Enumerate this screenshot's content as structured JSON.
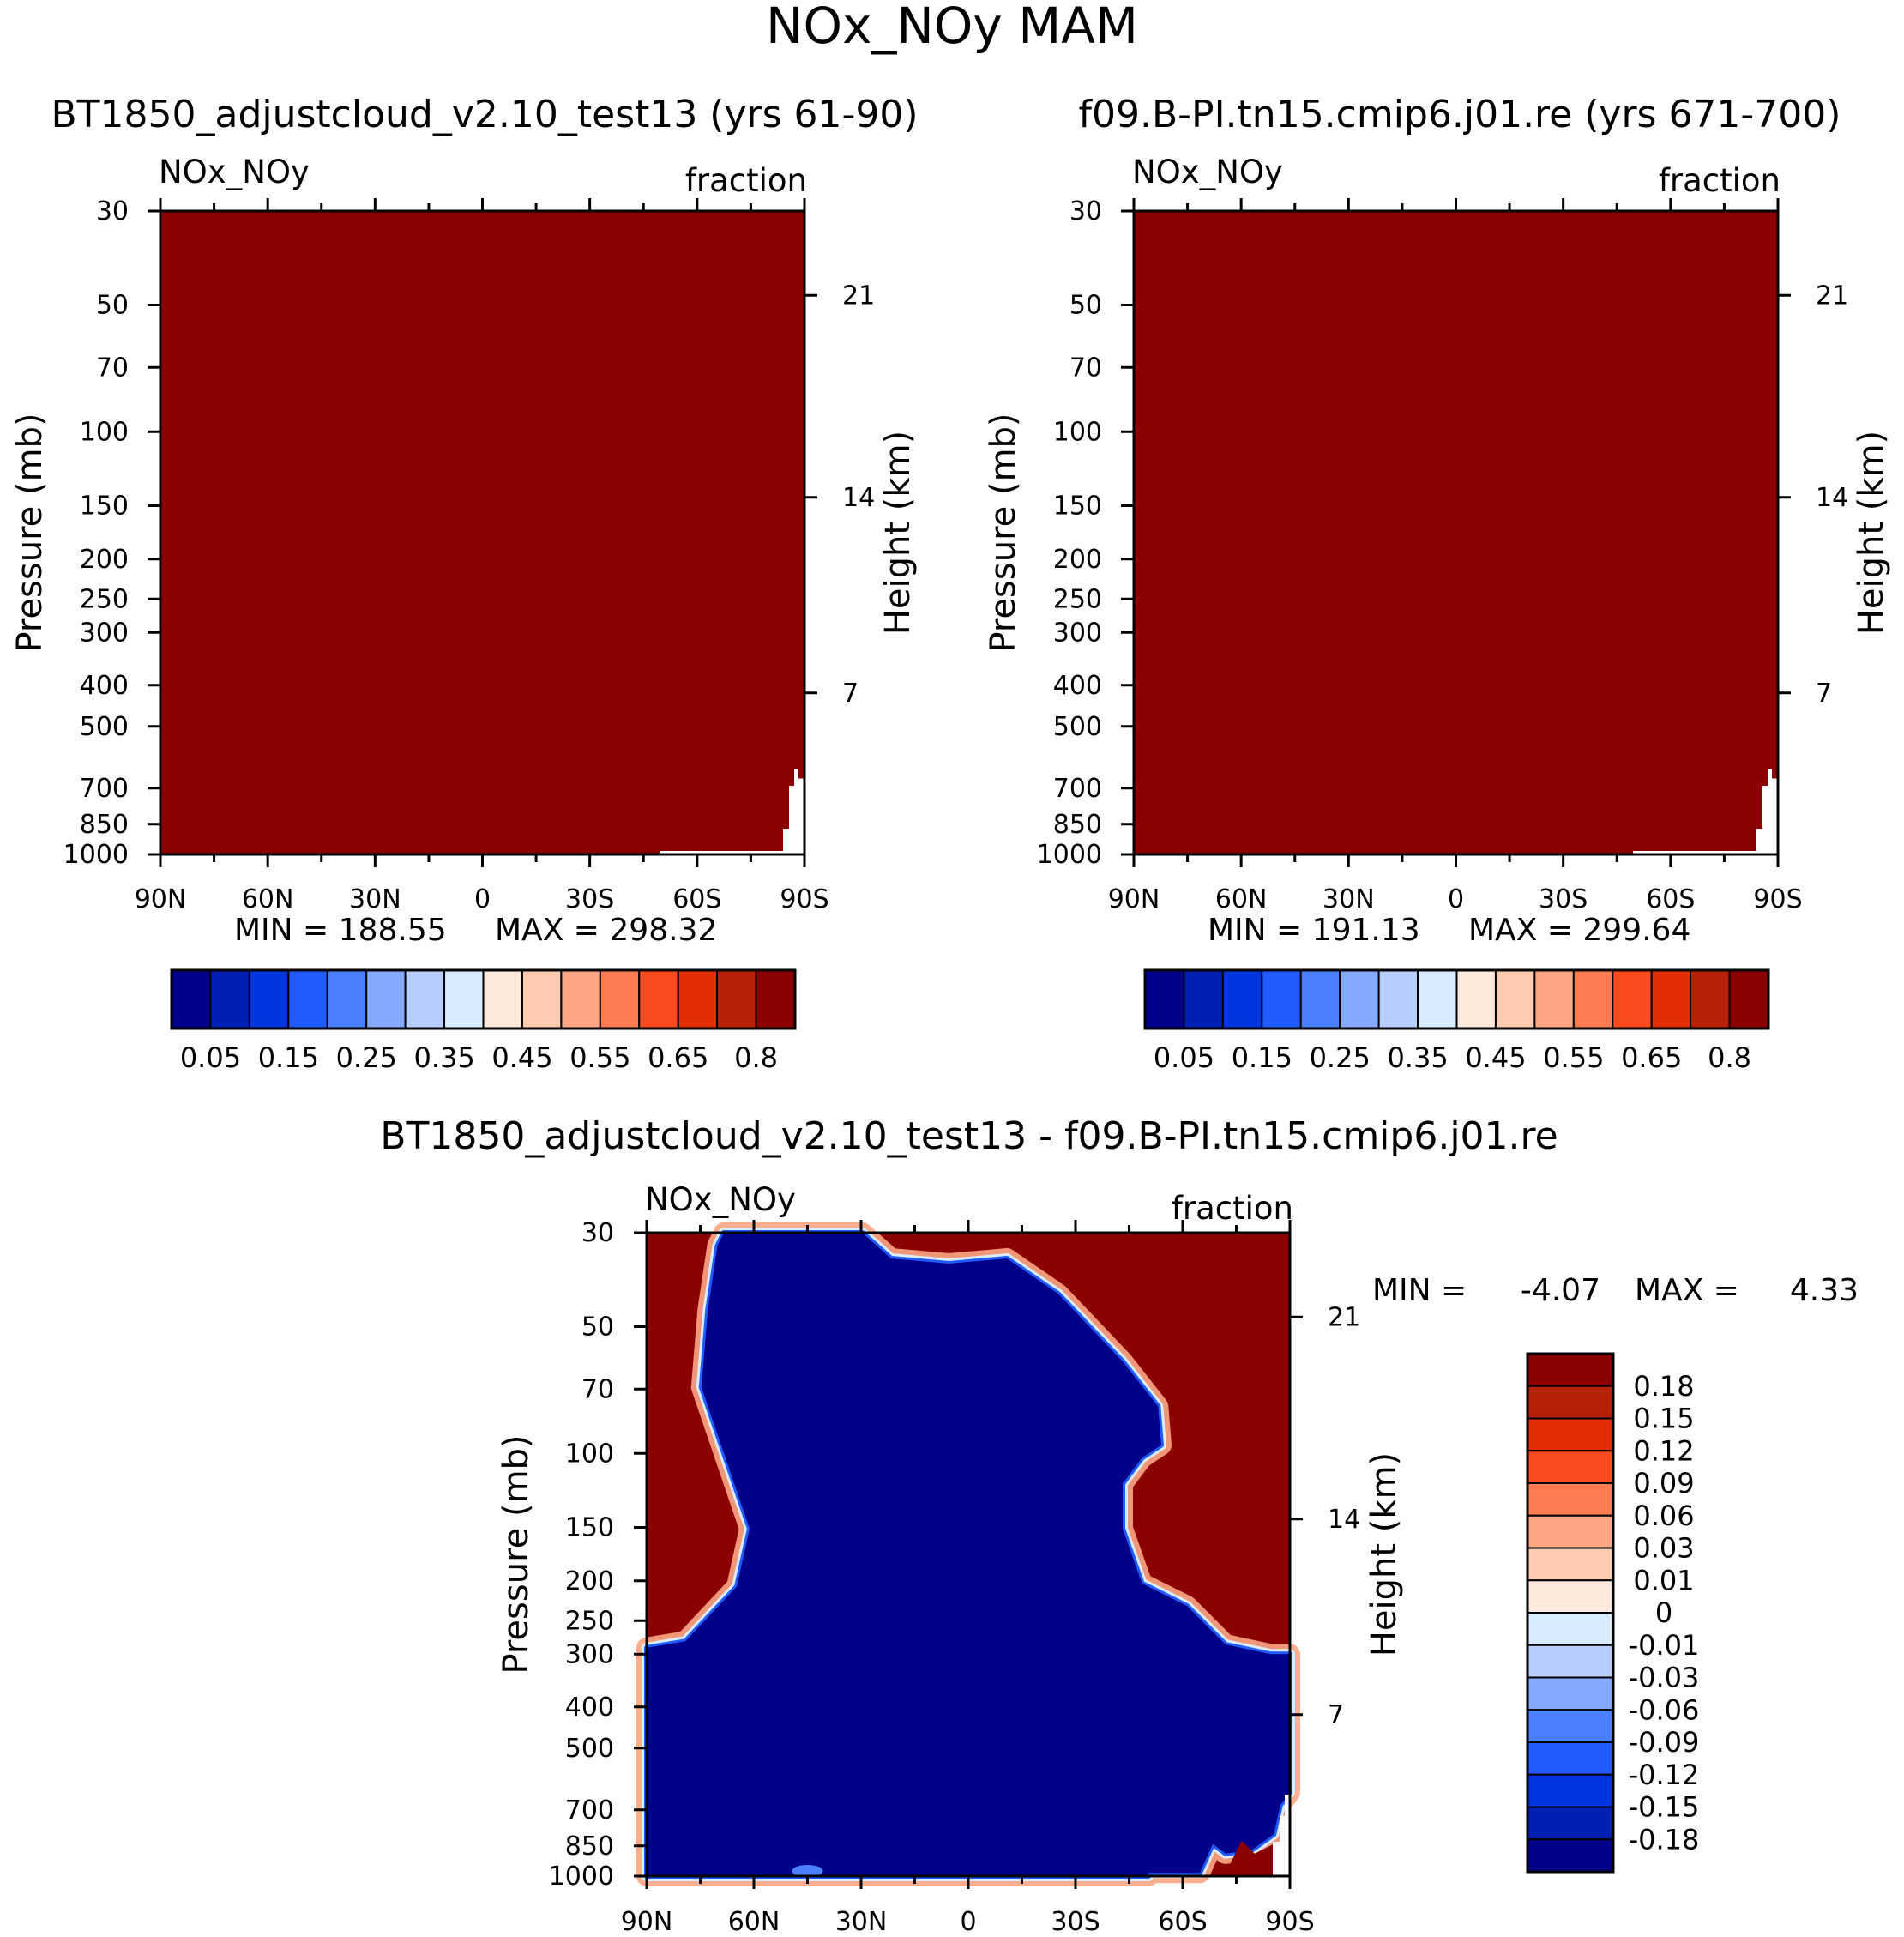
{
  "figure_title": "NOx_NOy MAM",
  "palette": {
    "sequential": [
      "#00008b",
      "#0020b4",
      "#0036e0",
      "#1f5bff",
      "#4a80ff",
      "#84a9ff",
      "#b7cdfe",
      "#d9ebff",
      "#fde9dc",
      "#fdcbb0",
      "#fca683",
      "#fb7d51",
      "#fb4a1f",
      "#e22e05",
      "#b52208",
      "#8b0000"
    ],
    "diverging": [
      "#00008b",
      "#0020b4",
      "#0036e0",
      "#1f5bff",
      "#4a80ff",
      "#84a9ff",
      "#b7cdfe",
      "#d9ebff",
      "#fde9dc",
      "#fdcbb0",
      "#fca683",
      "#fb7d51",
      "#fb4a1f",
      "#e22e05",
      "#b52208",
      "#8b0000"
    ]
  },
  "chart_data": [
    {
      "type": "heatmap",
      "title": "BT1850_adjustcloud_v2.10_test13 (yrs 61-90)",
      "variable_label": "NOx_NOy",
      "units_label": "fraction",
      "ylabel": "Pressure (mb)",
      "right_ylabel": "Height (km)",
      "xticks": [
        "90N",
        "60N",
        "30N",
        "0",
        "30S",
        "60S",
        "90S"
      ],
      "yticks": [
        "30",
        "50",
        "70",
        "100",
        "150",
        "200",
        "250",
        "300",
        "400",
        "500",
        "700",
        "850",
        "1000"
      ],
      "right_yticks": [
        "21",
        "14",
        "7"
      ],
      "min_label": "MIN = 188.55",
      "max_label": "MAX = 298.32",
      "dominant_level": "0.8",
      "colorbar_labels": [
        "0.05",
        "0.15",
        "0.25",
        "0.35",
        "0.45",
        "0.55",
        "0.65",
        "0.8"
      ]
    },
    {
      "type": "heatmap",
      "title": "f09.B-PI.tn15.cmip6.j01.re (yrs 671-700)",
      "variable_label": "NOx_NOy",
      "units_label": "fraction",
      "ylabel": "Pressure (mb)",
      "right_ylabel": "Height (km)",
      "xticks": [
        "90N",
        "60N",
        "30N",
        "0",
        "30S",
        "60S",
        "90S"
      ],
      "yticks": [
        "30",
        "50",
        "70",
        "100",
        "150",
        "200",
        "250",
        "300",
        "400",
        "500",
        "700",
        "850",
        "1000"
      ],
      "right_yticks": [
        "21",
        "14",
        "7"
      ],
      "min_label": "MIN = 191.13",
      "max_label": "MAX = 299.64",
      "dominant_level": "0.8",
      "colorbar_labels": [
        "0.05",
        "0.15",
        "0.25",
        "0.35",
        "0.45",
        "0.55",
        "0.65",
        "0.8"
      ]
    },
    {
      "type": "heatmap",
      "title": "BT1850_adjustcloud_v2.10_test13 - f09.B-PI.tn15.cmip6.j01.re",
      "variable_label": "NOx_NOy",
      "units_label": "fraction",
      "ylabel": "Pressure (mb)",
      "right_ylabel": "Height (km)",
      "xticks": [
        "90N",
        "60N",
        "30N",
        "0",
        "30S",
        "60S",
        "90S"
      ],
      "yticks": [
        "30",
        "50",
        "70",
        "100",
        "150",
        "200",
        "250",
        "300",
        "400",
        "500",
        "700",
        "850",
        "1000"
      ],
      "right_yticks": [
        "21",
        "14",
        "7"
      ],
      "min_label": "MIN =",
      "min_value": "-4.07",
      "max_label": "MAX =",
      "max_value": "4.33",
      "colorbar_labels": [
        "0.18",
        "0.15",
        "0.12",
        "0.09",
        "0.06",
        "0.03",
        "0.01",
        "0",
        "-0.01",
        "-0.03",
        "-0.06",
        "-0.09",
        "-0.12",
        "-0.15",
        "-0.18"
      ]
    }
  ]
}
